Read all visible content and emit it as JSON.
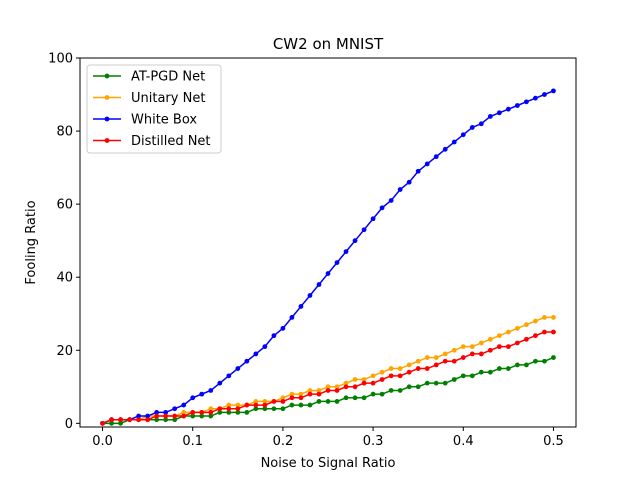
{
  "chart_data": {
    "type": "line",
    "title": "CW2 on MNIST",
    "xlabel": "Noise to Signal Ratio",
    "ylabel": "Fooling Ratio",
    "xlim": [
      -0.025,
      0.525
    ],
    "ylim": [
      -1,
      100
    ],
    "xticks": [
      0.0,
      0.1,
      0.2,
      0.3,
      0.4,
      0.5
    ],
    "xtick_labels": [
      "0.0",
      "0.1",
      "0.2",
      "0.3",
      "0.4",
      "0.5"
    ],
    "yticks": [
      0,
      20,
      40,
      60,
      80,
      100
    ],
    "ytick_labels": [
      "0",
      "20",
      "40",
      "60",
      "80",
      "100"
    ],
    "grid": false,
    "legend_position": "top-left",
    "x": [
      0.0,
      0.01,
      0.02,
      0.03,
      0.04,
      0.05,
      0.06,
      0.07,
      0.08,
      0.09,
      0.1,
      0.11,
      0.12,
      0.13,
      0.14,
      0.15,
      0.16,
      0.17,
      0.18,
      0.19,
      0.2,
      0.21,
      0.22,
      0.23,
      0.24,
      0.25,
      0.26,
      0.27,
      0.28,
      0.29,
      0.3,
      0.31,
      0.32,
      0.33,
      0.34,
      0.35,
      0.36,
      0.37,
      0.38,
      0.39,
      0.4,
      0.41,
      0.42,
      0.43,
      0.44,
      0.45,
      0.46,
      0.47,
      0.48,
      0.49,
      0.5
    ],
    "series": [
      {
        "name": "AT-PGD Net",
        "color": "#008000",
        "values": [
          0,
          0,
          0,
          1,
          1,
          1,
          1,
          1,
          1,
          2,
          2,
          2,
          2,
          3,
          3,
          3,
          3,
          4,
          4,
          4,
          4,
          5,
          5,
          5,
          6,
          6,
          6,
          7,
          7,
          7,
          8,
          8,
          9,
          9,
          10,
          10,
          11,
          11,
          11,
          12,
          13,
          13,
          14,
          14,
          15,
          15,
          16,
          16,
          17,
          17,
          18
        ]
      },
      {
        "name": "Unitary Net",
        "color": "#ffa500",
        "values": [
          0,
          1,
          1,
          1,
          1,
          2,
          2,
          2,
          2,
          3,
          3,
          3,
          4,
          4,
          5,
          5,
          5,
          6,
          6,
          6,
          7,
          8,
          8,
          9,
          9,
          10,
          10,
          11,
          12,
          12,
          13,
          14,
          15,
          15,
          16,
          17,
          18,
          18,
          19,
          20,
          21,
          21,
          22,
          23,
          24,
          25,
          26,
          27,
          28,
          29,
          29
        ]
      },
      {
        "name": "White Box",
        "color": "#0000ff",
        "values": [
          0,
          1,
          1,
          1,
          2,
          2,
          3,
          3,
          4,
          5,
          7,
          8,
          9,
          11,
          13,
          15,
          17,
          19,
          21,
          24,
          26,
          29,
          32,
          35,
          38,
          41,
          44,
          47,
          50,
          53,
          56,
          59,
          61,
          64,
          66,
          69,
          71,
          73,
          75,
          77,
          79,
          81,
          82,
          84,
          85,
          86,
          87,
          88,
          89,
          90,
          91
        ]
      },
      {
        "name": "Distilled Net",
        "color": "#ff0000",
        "values": [
          0,
          1,
          1,
          1,
          1,
          1,
          2,
          2,
          2,
          2,
          3,
          3,
          3,
          4,
          4,
          4,
          5,
          5,
          5,
          6,
          6,
          7,
          7,
          8,
          8,
          9,
          9,
          10,
          10,
          11,
          11,
          12,
          13,
          13,
          14,
          15,
          15,
          16,
          17,
          17,
          18,
          19,
          19,
          20,
          21,
          21,
          22,
          23,
          24,
          25,
          25
        ]
      }
    ]
  }
}
